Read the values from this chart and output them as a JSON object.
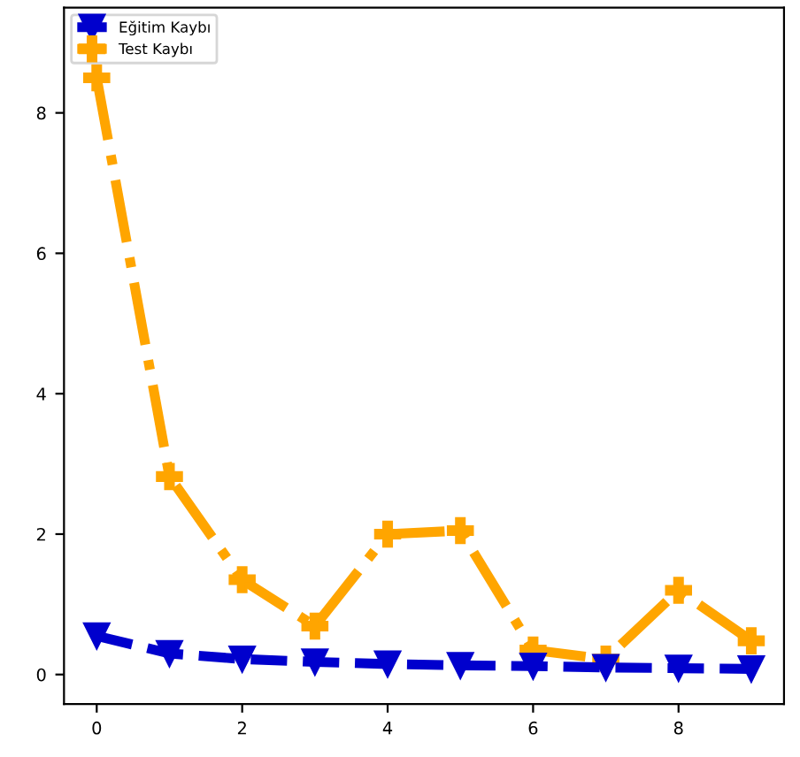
{
  "chart_data": {
    "type": "line",
    "x": [
      0,
      1,
      2,
      3,
      4,
      5,
      6,
      7,
      8,
      9
    ],
    "series": [
      {
        "name": "Eğitim Kaybı",
        "color": "#0000cd",
        "marker": "triangle",
        "line_style": "dashed",
        "values": [
          0.55,
          0.3,
          0.22,
          0.18,
          0.15,
          0.13,
          0.12,
          0.1,
          0.09,
          0.08
        ]
      },
      {
        "name": "Test Kaybı",
        "color": "#ffa500",
        "marker": "cross",
        "line_style": "dashdot",
        "values": [
          8.5,
          2.82,
          1.35,
          0.69,
          2.0,
          2.05,
          0.35,
          0.22,
          1.2,
          0.48
        ]
      }
    ],
    "xlim": [
      -0.45,
      9.45
    ],
    "ylim": [
      -0.42,
      9.5
    ],
    "xticks": [
      0,
      2,
      4,
      6,
      8
    ],
    "yticks": [
      0,
      2,
      4,
      6,
      8
    ],
    "grid": false,
    "legend": "top left"
  }
}
